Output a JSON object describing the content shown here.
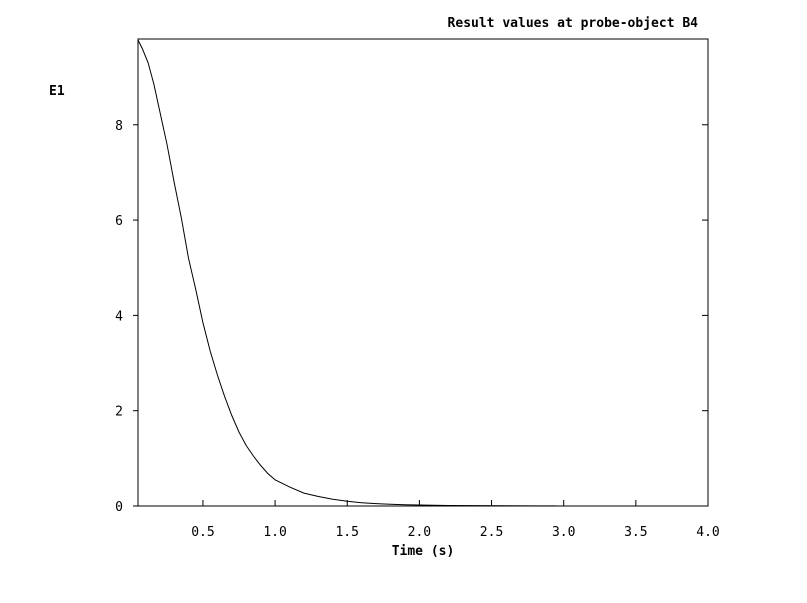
{
  "chart_data": {
    "type": "line",
    "title": "Result values at probe-object B4",
    "xlabel": "Time (s)",
    "ylabel": "E1",
    "xlim": [
      0.05,
      4.0
    ],
    "ylim": [
      0,
      9.8
    ],
    "x_ticks": [
      {
        "value": 0.5,
        "label": "0.5"
      },
      {
        "value": 1.0,
        "label": "1.0"
      },
      {
        "value": 1.5,
        "label": "1.5"
      },
      {
        "value": 2.0,
        "label": "2.0"
      },
      {
        "value": 2.5,
        "label": "2.5"
      },
      {
        "value": 3.0,
        "label": "3.0"
      },
      {
        "value": 3.5,
        "label": "3.5"
      },
      {
        "value": 4.0,
        "label": "4.0"
      }
    ],
    "y_ticks": [
      {
        "value": 0,
        "label": "0"
      },
      {
        "value": 2,
        "label": "2"
      },
      {
        "value": 4,
        "label": "4"
      },
      {
        "value": 6,
        "label": "6"
      },
      {
        "value": 8,
        "label": "8"
      }
    ],
    "grid": false,
    "series": [
      {
        "color": "#000000",
        "x": [
          0.05,
          0.08,
          0.12,
          0.16,
          0.2,
          0.25,
          0.3,
          0.35,
          0.4,
          0.45,
          0.5,
          0.55,
          0.6,
          0.65,
          0.7,
          0.75,
          0.8,
          0.85,
          0.9,
          0.95,
          1.0,
          1.1,
          1.2,
          1.3,
          1.4,
          1.5,
          1.6,
          1.7,
          1.8,
          1.9,
          2.0,
          2.2,
          2.4,
          2.6,
          2.8,
          2.95
        ],
        "y": [
          9.78,
          9.6,
          9.3,
          8.85,
          8.3,
          7.6,
          6.8,
          6.05,
          5.2,
          4.55,
          3.85,
          3.25,
          2.75,
          2.3,
          1.9,
          1.55,
          1.27,
          1.05,
          0.85,
          0.68,
          0.55,
          0.4,
          0.27,
          0.2,
          0.14,
          0.1,
          0.07,
          0.05,
          0.035,
          0.025,
          0.02,
          0.01,
          0.008,
          0.005,
          0.003,
          0.002
        ]
      }
    ]
  }
}
